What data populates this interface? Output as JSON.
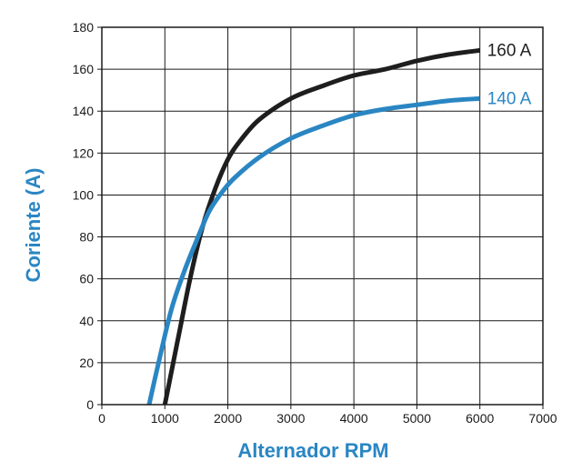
{
  "chart_data": {
    "type": "line",
    "xlabel": "Alternador RPM",
    "ylabel": "Coriente (A)",
    "xlim": [
      0,
      7000
    ],
    "ylim": [
      0,
      180
    ],
    "x_ticks": [
      0,
      1000,
      2000,
      3000,
      4000,
      5000,
      6000,
      7000
    ],
    "y_ticks": [
      0,
      20,
      40,
      60,
      80,
      100,
      120,
      140,
      160,
      180
    ],
    "grid": true,
    "series": [
      {
        "name": "160 A",
        "color": "#1e1e1e",
        "points": [
          [
            1000,
            0
          ],
          [
            1200,
            30
          ],
          [
            1400,
            60
          ],
          [
            1600,
            85
          ],
          [
            1800,
            103
          ],
          [
            2000,
            117
          ],
          [
            2200,
            126
          ],
          [
            2500,
            136
          ],
          [
            3000,
            146
          ],
          [
            3500,
            152
          ],
          [
            4000,
            157
          ],
          [
            4500,
            160
          ],
          [
            5000,
            164
          ],
          [
            5500,
            167
          ],
          [
            6000,
            169
          ]
        ]
      },
      {
        "name": "140 A",
        "color": "#2a86c3",
        "points": [
          [
            750,
            0
          ],
          [
            900,
            20
          ],
          [
            1100,
            45
          ],
          [
            1300,
            63
          ],
          [
            1500,
            78
          ],
          [
            1700,
            92
          ],
          [
            1900,
            101
          ],
          [
            2100,
            108
          ],
          [
            2500,
            118
          ],
          [
            3000,
            127
          ],
          [
            3500,
            133
          ],
          [
            4000,
            138
          ],
          [
            4500,
            141
          ],
          [
            5000,
            143
          ],
          [
            5500,
            145
          ],
          [
            6000,
            146
          ]
        ]
      }
    ]
  }
}
